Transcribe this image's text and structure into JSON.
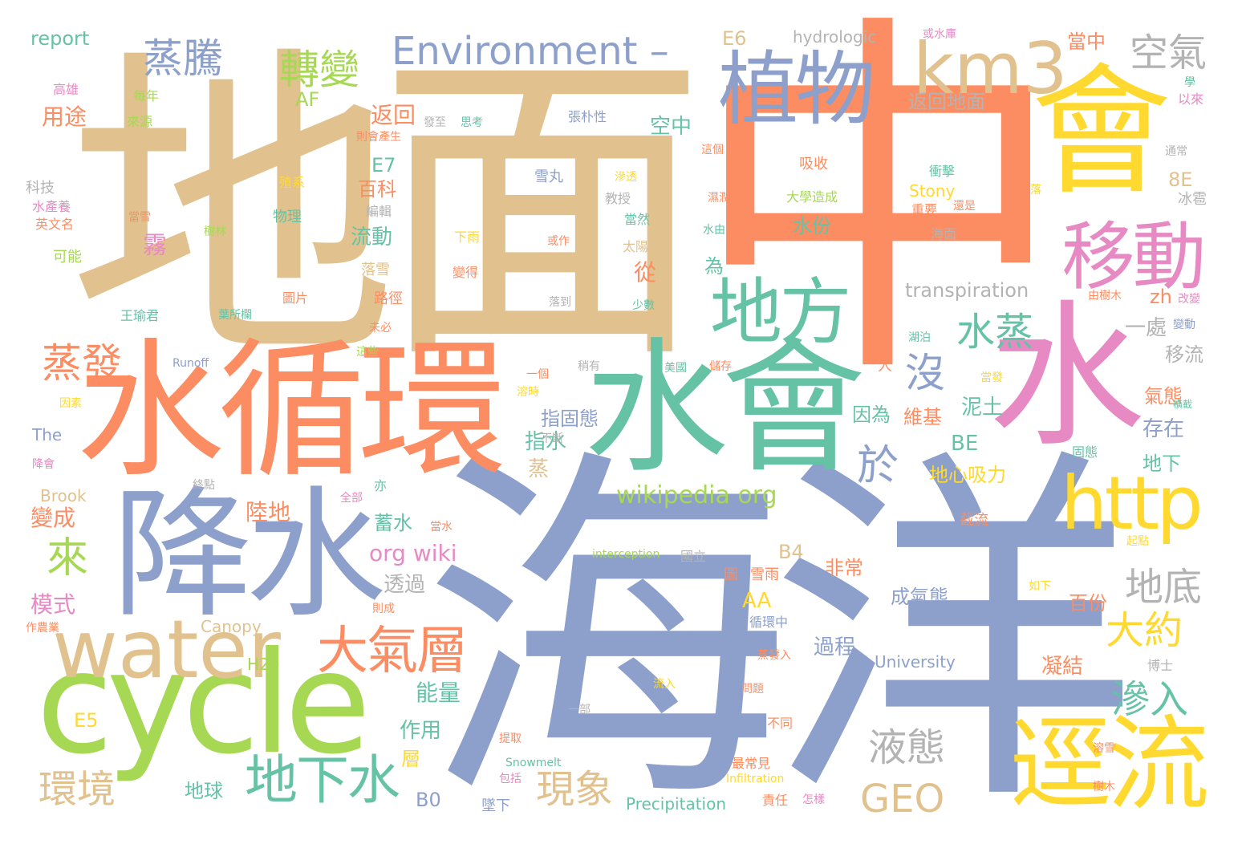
{
  "colors": {
    "tan": "#e1c28f",
    "orange": "#fc8d62",
    "blue": "#8da0cb",
    "green": "#66c2a5",
    "pink": "#e78ac3",
    "yellow": "#ffd92f",
    "lime": "#a6d854",
    "gray": "#b3b3b3"
  },
  "words": [
    {
      "text": "地面",
      "color": "tan",
      "weight": "xl"
    },
    {
      "text": "中",
      "color": "orange",
      "weight": "xl"
    },
    {
      "text": "海洋",
      "color": "blue",
      "weight": "xl"
    },
    {
      "text": "水循環",
      "color": "orange",
      "weight": "l"
    },
    {
      "text": "水會",
      "color": "green",
      "weight": "l"
    },
    {
      "text": "水",
      "color": "pink",
      "weight": "l"
    },
    {
      "text": "降水",
      "color": "blue",
      "weight": "l"
    },
    {
      "text": "cycle",
      "color": "lime",
      "weight": "l"
    },
    {
      "text": "會",
      "color": "yellow",
      "weight": "l"
    },
    {
      "text": "water",
      "color": "tan",
      "weight": "m"
    },
    {
      "text": "植物",
      "color": "blue",
      "weight": "m"
    },
    {
      "text": "km3",
      "color": "tan",
      "weight": "m"
    },
    {
      "text": "移動",
      "color": "pink",
      "weight": "m"
    },
    {
      "text": "地方",
      "color": "green",
      "weight": "m"
    },
    {
      "text": "http",
      "color": "yellow",
      "weight": "m"
    },
    {
      "text": "逕流",
      "color": "yellow",
      "weight": "m"
    },
    {
      "text": "Environment –",
      "color": "blue",
      "weight": "m"
    },
    {
      "text": "大氣層",
      "color": "orange",
      "weight": "m"
    },
    {
      "text": "地下水",
      "color": "green",
      "weight": "m"
    },
    {
      "text": "蒸騰",
      "color": "blue",
      "weight": "s"
    },
    {
      "text": "轉變",
      "color": "lime",
      "weight": "s"
    },
    {
      "text": "空氣",
      "color": "gray",
      "weight": "s"
    },
    {
      "text": "水蒸",
      "color": "green",
      "weight": "s"
    },
    {
      "text": "沒",
      "color": "blue",
      "weight": "s"
    },
    {
      "text": "於",
      "color": "blue",
      "weight": "s"
    },
    {
      "text": "蒸發",
      "color": "orange",
      "weight": "s"
    },
    {
      "text": "來",
      "color": "lime",
      "weight": "s"
    },
    {
      "text": "地底",
      "color": "gray",
      "weight": "s"
    },
    {
      "text": "大約",
      "color": "yellow",
      "weight": "s"
    },
    {
      "text": "滲入",
      "color": "green",
      "weight": "s"
    },
    {
      "text": "液態",
      "color": "gray",
      "weight": "s"
    },
    {
      "text": "現象",
      "color": "tan",
      "weight": "s"
    },
    {
      "text": "環境",
      "color": "tan",
      "weight": "s"
    },
    {
      "text": "GEO",
      "color": "tan",
      "weight": "s"
    },
    {
      "text": "wikipedia org",
      "color": "lime",
      "weight": "xs"
    },
    {
      "text": "org wiki",
      "color": "pink",
      "weight": "xs"
    },
    {
      "text": "transpiration",
      "color": "gray",
      "weight": "xs"
    },
    {
      "text": "report",
      "color": "green",
      "weight": "xs"
    },
    {
      "text": "hydrologic",
      "color": "gray",
      "weight": "xs"
    },
    {
      "text": "E6",
      "color": "tan",
      "weight": "xs"
    },
    {
      "text": "AF",
      "color": "lime",
      "weight": "xs"
    },
    {
      "text": "E7",
      "color": "green",
      "weight": "xs"
    },
    {
      "text": "8E",
      "color": "tan",
      "weight": "xs"
    },
    {
      "text": "zh",
      "color": "orange",
      "weight": "xs"
    },
    {
      "text": "BE",
      "color": "green",
      "weight": "xs"
    },
    {
      "text": "B4",
      "color": "tan",
      "weight": "xs"
    },
    {
      "text": "AA",
      "color": "yellow",
      "weight": "xs"
    },
    {
      "text": "B0",
      "color": "blue",
      "weight": "xs"
    },
    {
      "text": "E5",
      "color": "yellow",
      "weight": "xs"
    },
    {
      "text": "Stony",
      "color": "yellow",
      "weight": "xs"
    },
    {
      "text": "University",
      "color": "blue",
      "weight": "xs"
    },
    {
      "text": "Precipitation",
      "color": "green",
      "weight": "xs"
    },
    {
      "text": "Canopy",
      "color": "tan",
      "weight": "xs"
    },
    {
      "text": "Brook",
      "color": "tan",
      "weight": "xs"
    },
    {
      "text": "The",
      "color": "blue",
      "weight": "xs"
    },
    {
      "text": "H20",
      "color": "lime",
      "weight": "xs"
    },
    {
      "text": "Runoff",
      "color": "blue",
      "weight": "xs"
    },
    {
      "text": "interception",
      "color": "lime",
      "weight": "xs"
    },
    {
      "text": "Snowmelt",
      "color": "green",
      "weight": "xs"
    },
    {
      "text": "Infiltration",
      "color": "yellow",
      "weight": "xs"
    },
    {
      "text": "用途",
      "color": "orange",
      "weight": "xs"
    },
    {
      "text": "返回",
      "color": "orange",
      "weight": "xs"
    },
    {
      "text": "返回地面",
      "color": "gray",
      "weight": "xs"
    },
    {
      "text": "空中",
      "color": "green",
      "weight": "xs"
    },
    {
      "text": "當中",
      "color": "orange",
      "weight": "xs"
    },
    {
      "text": "百科",
      "color": "orange",
      "weight": "xs"
    },
    {
      "text": "水份",
      "color": "green",
      "weight": "xs"
    },
    {
      "text": "流動",
      "color": "green",
      "weight": "xs"
    },
    {
      "text": "霧",
      "color": "pink",
      "weight": "xs"
    },
    {
      "text": "從",
      "color": "orange",
      "weight": "xs"
    },
    {
      "text": "為",
      "color": "green",
      "weight": "xs"
    },
    {
      "text": "一處",
      "color": "gray",
      "weight": "xs"
    },
    {
      "text": "移流",
      "color": "gray",
      "weight": "xs"
    },
    {
      "text": "氣態",
      "color": "orange",
      "weight": "xs"
    },
    {
      "text": "泥土",
      "color": "green",
      "weight": "xs"
    },
    {
      "text": "因為",
      "color": "green",
      "weight": "xs"
    },
    {
      "text": "維基",
      "color": "orange",
      "weight": "xs"
    },
    {
      "text": "存在",
      "color": "blue",
      "weight": "xs"
    },
    {
      "text": "指固態",
      "color": "blue",
      "weight": "xs"
    },
    {
      "text": "指水",
      "color": "green",
      "weight": "xs"
    },
    {
      "text": "蒸",
      "color": "tan",
      "weight": "xs"
    },
    {
      "text": "地下",
      "color": "green",
      "weight": "xs"
    },
    {
      "text": "地心吸力",
      "color": "yellow",
      "weight": "xs"
    },
    {
      "text": "變成",
      "color": "orange",
      "weight": "xs"
    },
    {
      "text": "陸地",
      "color": "orange",
      "weight": "xs"
    },
    {
      "text": "蓄水",
      "color": "green",
      "weight": "xs"
    },
    {
      "text": "模式",
      "color": "pink",
      "weight": "xs"
    },
    {
      "text": "透過",
      "color": "gray",
      "weight": "xs"
    },
    {
      "text": "非常",
      "color": "orange",
      "weight": "xs"
    },
    {
      "text": "成氣態",
      "color": "blue",
      "weight": "xs"
    },
    {
      "text": "過程",
      "color": "blue",
      "weight": "xs"
    },
    {
      "text": "百份",
      "color": "orange",
      "weight": "xs"
    },
    {
      "text": "凝結",
      "color": "orange",
      "weight": "xs"
    },
    {
      "text": "能量",
      "color": "green",
      "weight": "xs"
    },
    {
      "text": "作用",
      "color": "green",
      "weight": "xs"
    },
    {
      "text": "層",
      "color": "yellow",
      "weight": "xs"
    },
    {
      "text": "地球",
      "color": "green",
      "weight": "xs"
    },
    {
      "text": "高雄",
      "color": "pink",
      "weight": "xs"
    },
    {
      "text": "每年",
      "color": "lime",
      "weight": "xs"
    },
    {
      "text": "來源",
      "color": "lime",
      "weight": "xs"
    },
    {
      "text": "科技",
      "color": "gray",
      "weight": "xs"
    },
    {
      "text": "水產養",
      "color": "pink",
      "weight": "xs"
    },
    {
      "text": "英文名",
      "color": "orange",
      "weight": "xs"
    },
    {
      "text": "可能",
      "color": "lime",
      "weight": "xs"
    },
    {
      "text": "當雪",
      "color": "orange",
      "weight": "xs"
    },
    {
      "text": "樹林",
      "color": "lime",
      "weight": "xs"
    },
    {
      "text": "殖系",
      "color": "yellow",
      "weight": "xs"
    },
    {
      "text": "物理",
      "color": "green",
      "weight": "xs"
    },
    {
      "text": "編輯",
      "color": "gray",
      "weight": "xs"
    },
    {
      "text": "發至",
      "color": "gray",
      "weight": "xs"
    },
    {
      "text": "思考",
      "color": "green",
      "weight": "xs"
    },
    {
      "text": "張朴性",
      "color": "blue",
      "weight": "xs"
    },
    {
      "text": "則會產生",
      "color": "orange",
      "weight": "xs"
    },
    {
      "text": "這個",
      "color": "orange",
      "weight": "xs"
    },
    {
      "text": "吸收",
      "color": "orange",
      "weight": "xs"
    },
    {
      "text": "衝擊",
      "color": "green",
      "weight": "xs"
    },
    {
      "text": "滲透",
      "color": "yellow",
      "weight": "xs"
    },
    {
      "text": "雪丸",
      "color": "blue",
      "weight": "xs"
    },
    {
      "text": "教授",
      "color": "gray",
      "weight": "xs"
    },
    {
      "text": "當然",
      "color": "green",
      "weight": "xs"
    },
    {
      "text": "太陽",
      "color": "tan",
      "weight": "xs"
    },
    {
      "text": "濕潤",
      "color": "orange",
      "weight": "xs"
    },
    {
      "text": "大學造成",
      "color": "lime",
      "weight": "xs"
    },
    {
      "text": "重要",
      "color": "orange",
      "weight": "xs"
    },
    {
      "text": "還是",
      "color": "orange",
      "weight": "xs"
    },
    {
      "text": "海面",
      "color": "gray",
      "weight": "xs"
    },
    {
      "text": "水由",
      "color": "green",
      "weight": "xs"
    },
    {
      "text": "下雨",
      "color": "yellow",
      "weight": "xs"
    },
    {
      "text": "或作",
      "color": "orange",
      "weight": "xs"
    },
    {
      "text": "變得",
      "color": "orange",
      "weight": "xs"
    },
    {
      "text": "落到",
      "color": "gray",
      "weight": "xs"
    },
    {
      "text": "少數",
      "color": "green",
      "weight": "xs"
    },
    {
      "text": "落雪",
      "color": "tan",
      "weight": "xs"
    },
    {
      "text": "路徑",
      "color": "orange",
      "weight": "xs"
    },
    {
      "text": "圖片",
      "color": "orange",
      "weight": "xs"
    },
    {
      "text": "葉所欄",
      "color": "green",
      "weight": "xs"
    },
    {
      "text": "王瑜君",
      "color": "green",
      "weight": "xs"
    },
    {
      "text": "未必",
      "color": "orange",
      "weight": "xs"
    },
    {
      "text": "這些",
      "color": "lime",
      "weight": "xs"
    },
    {
      "text": "稍有",
      "color": "gray",
      "weight": "xs"
    },
    {
      "text": "美國",
      "color": "green",
      "weight": "xs"
    },
    {
      "text": "儲存",
      "color": "orange",
      "weight": "xs"
    },
    {
      "text": "一個",
      "color": "orange",
      "weight": "xs"
    },
    {
      "text": "溶時",
      "color": "yellow",
      "weight": "xs"
    },
    {
      "text": "不斷",
      "color": "gray",
      "weight": "xs"
    },
    {
      "text": "因素",
      "color": "yellow",
      "weight": "xs"
    },
    {
      "text": "降會",
      "color": "pink",
      "weight": "xs"
    },
    {
      "text": "終點",
      "color": "gray",
      "weight": "xs"
    },
    {
      "text": "全部",
      "color": "pink",
      "weight": "xs"
    },
    {
      "text": "亦",
      "color": "green",
      "weight": "xs"
    },
    {
      "text": "人",
      "color": "orange",
      "weight": "xs"
    },
    {
      "text": "截流",
      "color": "orange",
      "weight": "xs"
    },
    {
      "text": "起點",
      "color": "yellow",
      "weight": "xs"
    },
    {
      "text": "國立",
      "color": "gray",
      "weight": "xs"
    },
    {
      "text": "雪雨",
      "color": "orange",
      "weight": "xs"
    },
    {
      "text": "圖",
      "color": "orange",
      "weight": "xs"
    },
    {
      "text": "循環中",
      "color": "blue",
      "weight": "xs"
    },
    {
      "text": "作農業",
      "color": "orange",
      "weight": "xs"
    },
    {
      "text": "則成",
      "color": "orange",
      "weight": "xs"
    },
    {
      "text": "蒸發入",
      "color": "orange",
      "weight": "xs"
    },
    {
      "text": "問題",
      "color": "orange",
      "weight": "xs"
    },
    {
      "text": "一部",
      "color": "gray",
      "weight": "xs"
    },
    {
      "text": "流入",
      "color": "yellow",
      "weight": "xs"
    },
    {
      "text": "提取",
      "color": "orange",
      "weight": "xs"
    },
    {
      "text": "包括",
      "color": "pink",
      "weight": "xs"
    },
    {
      "text": "最常見",
      "color": "orange",
      "weight": "xs"
    },
    {
      "text": "責任",
      "color": "orange",
      "weight": "xs"
    },
    {
      "text": "怎樣",
      "color": "pink",
      "weight": "xs"
    },
    {
      "text": "墜下",
      "color": "blue",
      "weight": "xs"
    },
    {
      "text": "不同",
      "color": "orange",
      "weight": "xs"
    },
    {
      "text": "或水庫",
      "color": "pink",
      "weight": "xs"
    },
    {
      "text": "學",
      "color": "green",
      "weight": "xs"
    },
    {
      "text": "以來",
      "color": "pink",
      "weight": "xs"
    },
    {
      "text": "通常",
      "color": "gray",
      "weight": "xs"
    },
    {
      "text": "冰雹",
      "color": "gray",
      "weight": "xs"
    },
    {
      "text": "改變",
      "color": "pink",
      "weight": "xs"
    },
    {
      "text": "變動",
      "color": "blue",
      "weight": "xs"
    },
    {
      "text": "橫截",
      "color": "green",
      "weight": "xs"
    },
    {
      "text": "固態",
      "color": "green",
      "weight": "xs"
    },
    {
      "text": "由樹木",
      "color": "orange",
      "weight": "xs"
    },
    {
      "text": "湖泊",
      "color": "green",
      "weight": "xs"
    },
    {
      "text": "當發",
      "color": "yellow",
      "weight": "xs"
    },
    {
      "text": "溶雪",
      "color": "orange",
      "weight": "xs"
    },
    {
      "text": "樹木",
      "color": "orange",
      "weight": "xs"
    },
    {
      "text": "博士",
      "color": "gray",
      "weight": "xs"
    },
    {
      "text": "如下",
      "color": "yellow",
      "weight": "xs"
    },
    {
      "text": "當水",
      "color": "orange",
      "weight": "xs"
    },
    {
      "text": "落",
      "color": "yellow",
      "weight": "xs"
    }
  ]
}
